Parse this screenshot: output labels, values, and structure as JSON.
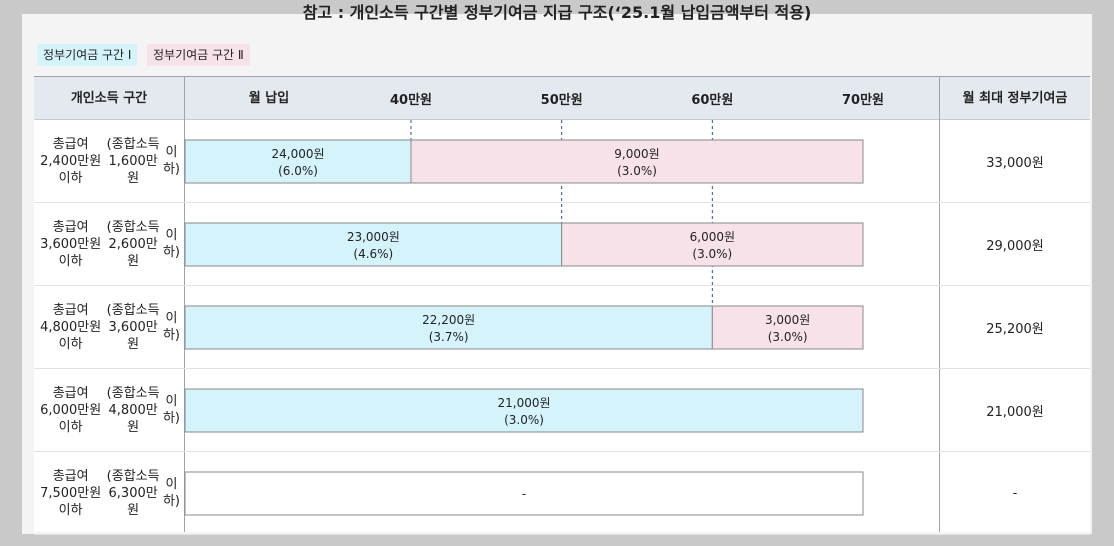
{
  "title": "참고 : 개인소득 구간별 정부기여금 지급 구조(‘25.1월 납입금액부터 적용)",
  "legend": {
    "tier1": {
      "label": "정부기여금 구간 Ⅰ",
      "color": "#d5f3fb"
    },
    "tier2": {
      "label": "정부기여금 구간 Ⅱ",
      "color": "#f7e2ea"
    }
  },
  "header": {
    "income_col": "개인소득 구간",
    "payment_col": "월 납입",
    "max_col": "월 최대 정부기여금"
  },
  "chart_data": {
    "type": "bar",
    "orientation": "horizontal",
    "stacked": true,
    "x_unit": "만원",
    "x_ticks": [
      {
        "value": 40,
        "label": "40만원"
      },
      {
        "value": 50,
        "label": "50만원"
      },
      {
        "value": 60,
        "label": "60만원"
      },
      {
        "value": 70,
        "label": "70만원"
      }
    ],
    "xlim": [
      25,
      70
    ],
    "categories": [
      [
        "총급여 2,400만원 이하",
        "(종합소득 1,600만원",
        "이하)"
      ],
      [
        "총급여 3,600만원 이하",
        "(종합소득 2,600만원",
        "이하)"
      ],
      [
        "총급여 4,800만원 이하",
        "(종합소득 3,600만원",
        "이하)"
      ],
      [
        "총급여 6,000만원 이하",
        "(종합소득 4,800만원",
        "이하)"
      ],
      [
        "총급여 7,500만원 이하",
        "(종합소득 6,300만원",
        "이하)"
      ]
    ],
    "rows": [
      {
        "segments": [
          {
            "tier": "tier1",
            "from": 25,
            "to": 40,
            "amount": "24,000원",
            "rate": "(6.0%)"
          },
          {
            "tier": "tier2",
            "from": 40,
            "to": 70,
            "amount": "9,000원",
            "rate": "(3.0%)"
          }
        ],
        "max": "33,000원"
      },
      {
        "segments": [
          {
            "tier": "tier1",
            "from": 25,
            "to": 50,
            "amount": "23,000원",
            "rate": "(4.6%)"
          },
          {
            "tier": "tier2",
            "from": 50,
            "to": 70,
            "amount": "6,000원",
            "rate": "(3.0%)"
          }
        ],
        "max": "29,000원"
      },
      {
        "segments": [
          {
            "tier": "tier1",
            "from": 25,
            "to": 60,
            "amount": "22,200원",
            "rate": "(3.7%)"
          },
          {
            "tier": "tier2",
            "from": 60,
            "to": 70,
            "amount": "3,000원",
            "rate": "(3.0%)"
          }
        ],
        "max": "25,200원"
      },
      {
        "segments": [
          {
            "tier": "tier1",
            "from": 25,
            "to": 70,
            "amount": "21,000원",
            "rate": "(3.0%)"
          }
        ],
        "max": "21,000원"
      },
      {
        "segments": [
          {
            "tier": "none",
            "from": 25,
            "to": 70,
            "amount": "-",
            "rate": ""
          }
        ],
        "max": "-"
      }
    ]
  }
}
